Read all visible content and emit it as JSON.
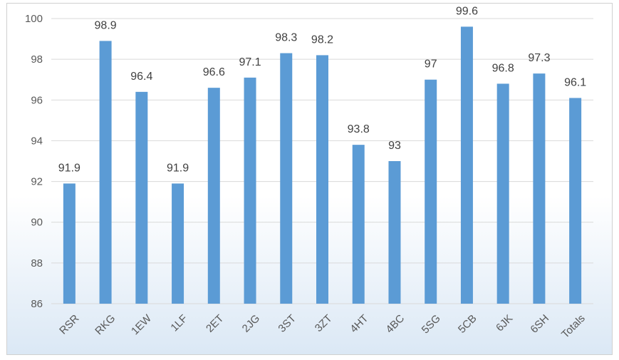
{
  "chart_data": {
    "type": "bar",
    "categories": [
      "RSR",
      "RKG",
      "1EW",
      "1LF",
      "2ET",
      "2JG",
      "3ST",
      "3ZT",
      "4HT",
      "4BC",
      "5SG",
      "5CB",
      "6JK",
      "6SH",
      "Totals"
    ],
    "values": [
      91.9,
      98.9,
      96.4,
      91.9,
      96.6,
      97.1,
      98.3,
      98.2,
      93.8,
      93,
      97,
      99.6,
      96.8,
      97.3,
      96.1
    ],
    "data_labels": [
      "91.9",
      "98.9",
      "96.4",
      "91.9",
      "96.6",
      "97.1",
      "98.3",
      "98.2",
      "93.8",
      "93",
      "97",
      "99.6",
      "96.8",
      "97.3",
      "96.1"
    ],
    "title": "",
    "xlabel": "",
    "ylabel": "",
    "ylim": [
      86,
      100
    ],
    "yticks": [
      "86",
      "88",
      "90",
      "92",
      "94",
      "96",
      "98",
      "100"
    ],
    "grid": true,
    "legend": "none",
    "colors": {
      "bar": "#5b9bd5",
      "background_top": "#ffffff",
      "background_bottom": "#dbe8f5"
    }
  }
}
